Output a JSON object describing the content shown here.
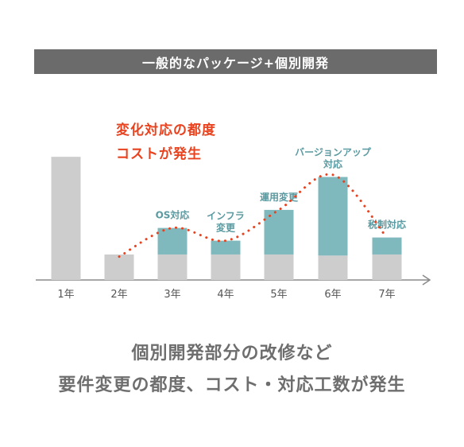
{
  "header": {
    "title": "一般的なパッケージ+個別開発"
  },
  "chart_data": {
    "type": "bar",
    "categories": [
      "1年",
      "2年",
      "3年",
      "4年",
      "5年",
      "6年",
      "7年"
    ],
    "series": [
      {
        "values": [
          null,
          12,
          12,
          12,
          12,
          11.5,
          12
        ]
      },
      {
        "values": [
          null,
          null,
          12.5,
          6.5,
          21,
          37,
          8
        ]
      },
      {
        "values": [
          58,
          null,
          null,
          null,
          null,
          null,
          null
        ]
      }
    ],
    "trend_values": [
      null,
      11,
      24.5,
      18.5,
      33,
      49.5,
      20
    ],
    "bar_labels": [
      "",
      "",
      "OS対応",
      "インフラ\n変更",
      "運用変更",
      "バージョンアップ\n対応",
      "税制対応"
    ],
    "annotation": "変化対応の都度\nコストが発生",
    "colors": {
      "base": "#cdcdcd",
      "change": "#7fb9bd",
      "trend": "#e8421f",
      "label": "#5a9aa0",
      "axis": "#8a8a8a",
      "tick": "#555555"
    }
  },
  "footer": {
    "line1": "個別開発部分の改修など",
    "line2": "要件変更の都度、コスト・対応工数が発生"
  }
}
